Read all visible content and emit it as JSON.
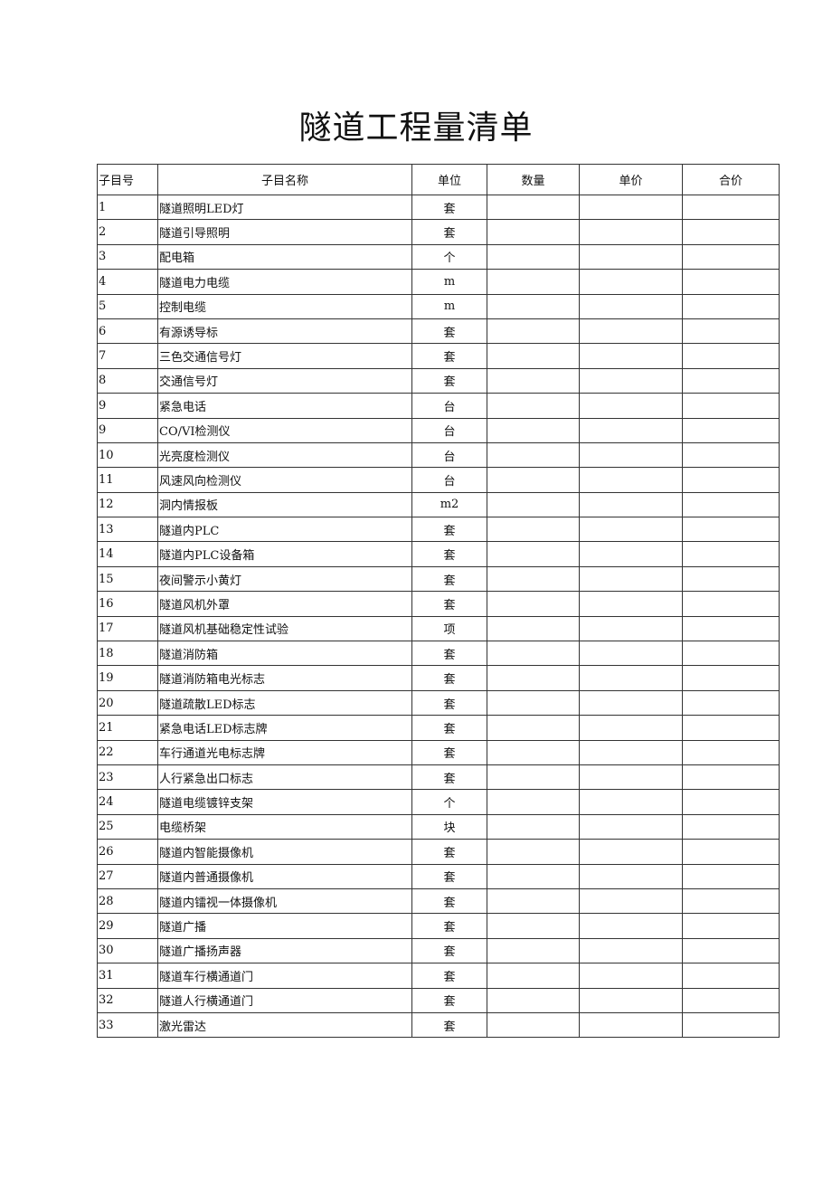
{
  "title": "隧道工程量清单",
  "table": {
    "headers": [
      "子目号",
      "子目名称",
      "单位",
      "数量",
      "单价",
      "合价"
    ],
    "rows": [
      {
        "no": "1",
        "name": "隧道照明LED灯",
        "unit": "套"
      },
      {
        "no": "2",
        "name": "隧道引导照明",
        "unit": "套"
      },
      {
        "no": "3",
        "name": "配电箱",
        "unit": "个"
      },
      {
        "no": "4",
        "name": "隧道电力电缆",
        "unit": "m"
      },
      {
        "no": "5",
        "name": "控制电缆",
        "unit": "m"
      },
      {
        "no": "6",
        "name": "有源诱导标",
        "unit": "套"
      },
      {
        "no": "7",
        "name": "三色交通信号灯",
        "unit": "套"
      },
      {
        "no": "8",
        "name": "交通信号灯",
        "unit": "套"
      },
      {
        "no": "9",
        "name": "紧急电话",
        "unit": "台"
      },
      {
        "no": "9",
        "name": "CO/VI检测仪",
        "unit": "台"
      },
      {
        "no": "10",
        "name": "光亮度检测仪",
        "unit": "台"
      },
      {
        "no": "11",
        "name": "风速风向检测仪",
        "unit": "台"
      },
      {
        "no": "12",
        "name": "洞内情报板",
        "unit": "m2"
      },
      {
        "no": "13",
        "name": "隧道内PLC",
        "unit": "套"
      },
      {
        "no": "14",
        "name": "隧道内PLC设备箱",
        "unit": "套"
      },
      {
        "no": "15",
        "name": "夜间警示小黄灯",
        "unit": "套"
      },
      {
        "no": "16",
        "name": "隧道风机外罩",
        "unit": "套"
      },
      {
        "no": "17",
        "name": "隧道风机基础稳定性试验",
        "unit": "项"
      },
      {
        "no": "18",
        "name": "隧道消防箱",
        "unit": "套"
      },
      {
        "no": "19",
        "name": "隧道消防箱电光标志",
        "unit": "套"
      },
      {
        "no": "20",
        "name": "隧道疏散LED标志",
        "unit": "套"
      },
      {
        "no": "21",
        "name": "紧急电话LED标志牌",
        "unit": "套"
      },
      {
        "no": "22",
        "name": "车行通道光电标志牌",
        "unit": "套"
      },
      {
        "no": "23",
        "name": "人行紧急出口标志",
        "unit": "套"
      },
      {
        "no": "24",
        "name": "隧道电缆镀锌支架",
        "unit": "个"
      },
      {
        "no": "25",
        "name": "电缆桥架",
        "unit": "块"
      },
      {
        "no": "26",
        "name": "隧道内智能摄像机",
        "unit": "套"
      },
      {
        "no": "27",
        "name": "隧道内普通摄像机",
        "unit": "套"
      },
      {
        "no": "28",
        "name": "隧道内镭视一体摄像机",
        "unit": "套"
      },
      {
        "no": "29",
        "name": "隧道广播",
        "unit": "套"
      },
      {
        "no": "30",
        "name": "隧道广播扬声器",
        "unit": "套"
      },
      {
        "no": "31",
        "name": "隧道车行横通道门",
        "unit": "套"
      },
      {
        "no": "32",
        "name": "隧道人行横通道门",
        "unit": "套"
      },
      {
        "no": "33",
        "name": "激光雷达",
        "unit": "套"
      }
    ]
  }
}
